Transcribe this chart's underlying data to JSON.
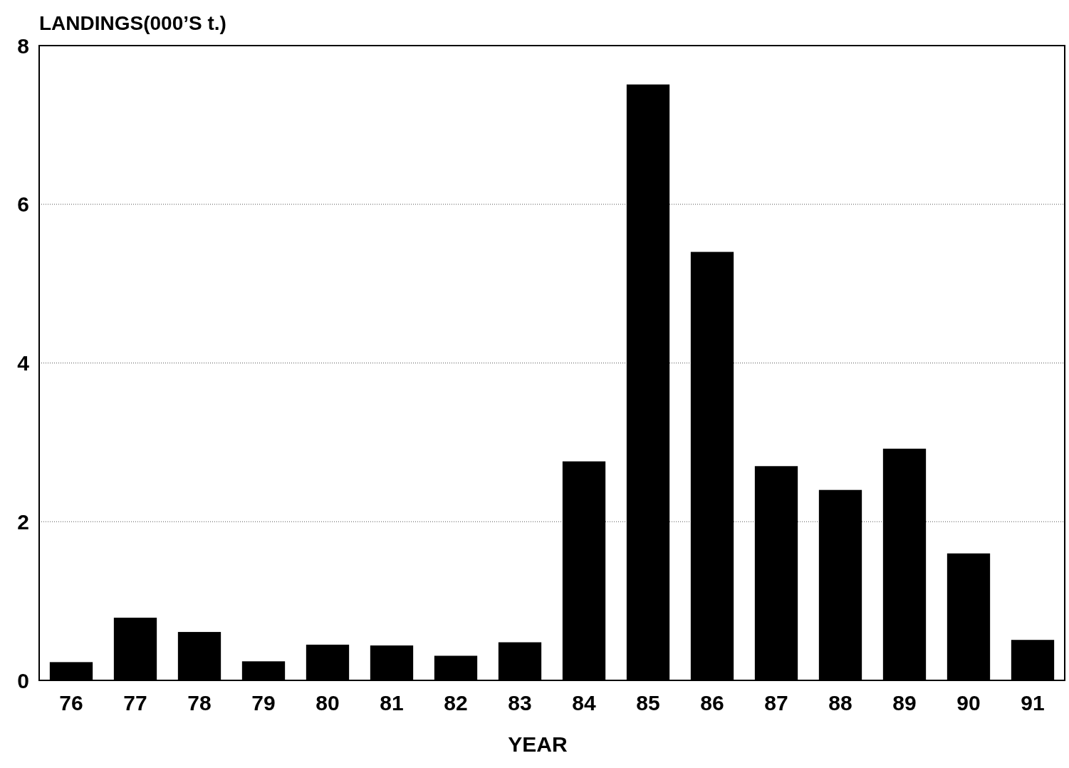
{
  "chart_data": {
    "type": "bar",
    "ylabel": "LANDINGS(000’S t.)",
    "xlabel": "YEAR",
    "categories": [
      "76",
      "77",
      "78",
      "79",
      "80",
      "81",
      "82",
      "83",
      "84",
      "85",
      "86",
      "87",
      "88",
      "89",
      "90",
      "91"
    ],
    "values": [
      0.23,
      0.79,
      0.61,
      0.24,
      0.45,
      0.44,
      0.31,
      0.48,
      2.76,
      7.51,
      5.4,
      2.7,
      2.4,
      2.92,
      1.6,
      0.51
    ],
    "color": "#000000",
    "ylim": [
      0,
      8
    ],
    "yticks": [
      0,
      2,
      4,
      6,
      8
    ],
    "grid": "y"
  }
}
